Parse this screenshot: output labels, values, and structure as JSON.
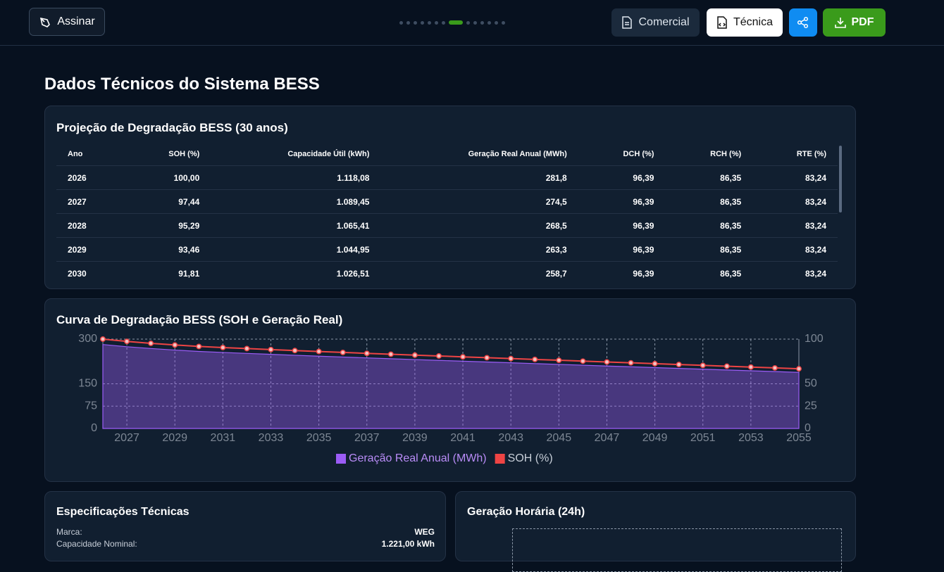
{
  "header": {
    "buttons": {
      "sign": "Assinar",
      "commercial": "Comercial",
      "technical": "Técnica",
      "pdf": "PDF"
    }
  },
  "page_title": "Dados Técnicos do Sistema BESS",
  "table": {
    "title": "Projeção de Degradação BESS (30 anos)",
    "columns": [
      "Ano",
      "SOH (%)",
      "Capacidade Útil (kWh)",
      "Geração Real Anual (MWh)",
      "DCH (%)",
      "RCH (%)",
      "RTE (%)"
    ],
    "rows": [
      [
        "2026",
        "100,00",
        "1.118,08",
        "281,8",
        "96,39",
        "86,35",
        "83,24"
      ],
      [
        "2027",
        "97,44",
        "1.089,45",
        "274,5",
        "96,39",
        "86,35",
        "83,24"
      ],
      [
        "2028",
        "95,29",
        "1.065,41",
        "268,5",
        "96,39",
        "86,35",
        "83,24"
      ],
      [
        "2029",
        "93,46",
        "1.044,95",
        "263,3",
        "96,39",
        "86,35",
        "83,24"
      ],
      [
        "2030",
        "91,81",
        "1.026,51",
        "258,7",
        "96,39",
        "86,35",
        "83,24"
      ]
    ]
  },
  "chart_data": {
    "type": "line",
    "title": "Curva de Degradação BESS (SOH e Geração Real)",
    "x": [
      2026,
      2027,
      2028,
      2029,
      2030,
      2031,
      2032,
      2033,
      2034,
      2035,
      2036,
      2037,
      2038,
      2039,
      2040,
      2041,
      2042,
      2043,
      2044,
      2045,
      2046,
      2047,
      2048,
      2049,
      2050,
      2051,
      2052,
      2053,
      2054,
      2055
    ],
    "xlim": [
      2026,
      2055
    ],
    "xticks": [
      2027,
      2029,
      2031,
      2033,
      2035,
      2037,
      2039,
      2041,
      2043,
      2045,
      2047,
      2049,
      2051,
      2053,
      2055
    ],
    "ylim": [
      0,
      300
    ],
    "yticks": [
      0,
      75,
      150,
      300
    ],
    "y2lim": [
      0,
      100
    ],
    "y2ticks": [
      0,
      25,
      50,
      100
    ],
    "grid": true,
    "legend": "bottom",
    "series": [
      {
        "name": "Geração Real Anual (MWh)",
        "color": "#9b5cf6",
        "area": true,
        "values": [
          281.8,
          274.5,
          268.5,
          263.3,
          258.7,
          255.3,
          252.0,
          248.9,
          245.8,
          242.8,
          239.9,
          237.0,
          234.2,
          231.4,
          228.6,
          225.9,
          223.2,
          220.5,
          217.8,
          215.1,
          212.4,
          209.7,
          207.1,
          204.4,
          201.7,
          199.0,
          196.4,
          193.7,
          191.0,
          188.3
        ]
      },
      {
        "name": "SOH (%)",
        "color": "#ef4444",
        "axis": "y2",
        "values": [
          100,
          97.44,
          95.29,
          93.46,
          91.81,
          90.59,
          89.43,
          88.31,
          87.22,
          86.16,
          85.12,
          84.1,
          83.1,
          82.11,
          81.13,
          80.16,
          79.2,
          78.24,
          77.28,
          76.33,
          75.38,
          74.43,
          73.48,
          72.53,
          71.58,
          70.63,
          69.68,
          68.73,
          67.78,
          66.83
        ]
      }
    ]
  },
  "specs": {
    "title": "Especificações Técnicas",
    "rows": [
      [
        "Marca:",
        "WEG"
      ],
      [
        "Capacidade Nominal:",
        "1.221,00 kWh"
      ]
    ]
  },
  "hourly": {
    "title": "Geração Horária (24h)"
  }
}
